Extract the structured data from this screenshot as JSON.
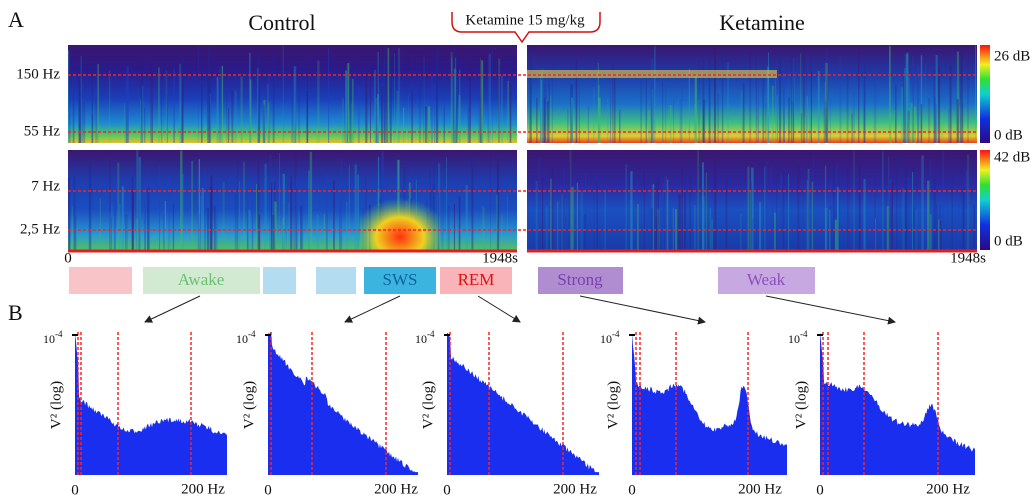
{
  "panel_a": {
    "label": "A",
    "control_title": "Control",
    "ketamine_title": "Ketamine",
    "injection": "Ketamine 15 mg/kg",
    "high_freq_labels": [
      "150 Hz",
      "55 Hz"
    ],
    "low_freq_labels": [
      "7 Hz",
      "2,5 Hz"
    ],
    "time_start": "0",
    "time_end": "1948s",
    "colorbar_high": [
      "26 dB",
      "0 dB"
    ],
    "colorbar_low": [
      "42 dB",
      "0 dB"
    ]
  },
  "states": [
    "Awake",
    "SWS",
    "REM",
    "Strong",
    "Weak"
  ],
  "panel_b": {
    "label": "B",
    "y_scale": "10",
    "y_exp": "-4",
    "y_label": "V² (log)",
    "x_ticks": [
      "0",
      "200 Hz"
    ]
  }
}
